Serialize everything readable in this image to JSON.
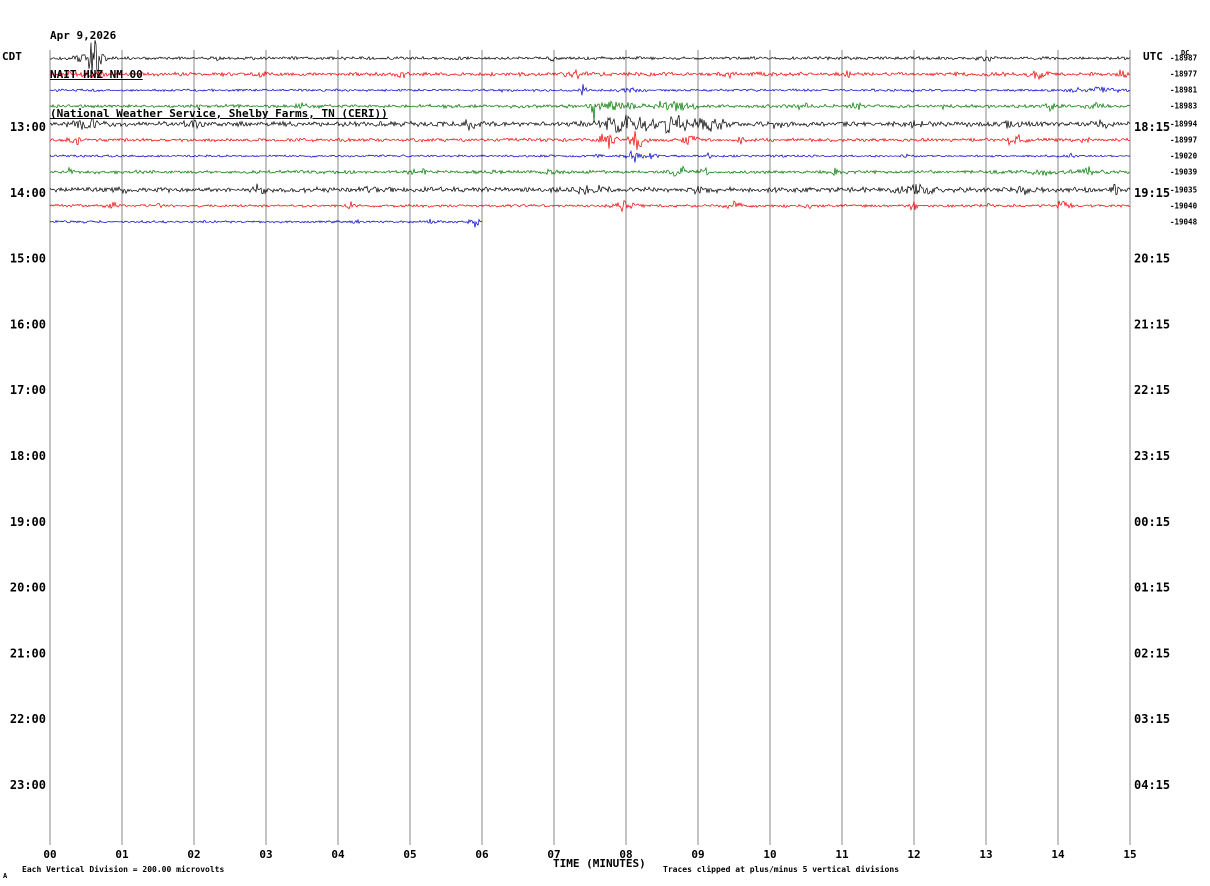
{
  "header": {
    "date": "Apr 9,2026",
    "station": "NAIT HNZ NM 00",
    "description": "(National Weather Service, Shelby Farms, TN (CERI))"
  },
  "axes": {
    "left_label": "CDT",
    "right_label": "UTC",
    "x_axis_label": "TIME (MINUTES)"
  },
  "footer": {
    "scale_note": "Each Vertical Division =  200.00 microvolts",
    "clip_note": "Traces clipped at plus/minus 5 vertical divisions",
    "corner_mark": "A"
  },
  "chart_data": {
    "type": "line",
    "title": "NAIT HNZ NM 00 helicorder",
    "xlabel": "TIME (MINUTES)",
    "x_range": [
      0,
      15
    ],
    "x_ticks": [
      "00",
      "01",
      "02",
      "03",
      "04",
      "05",
      "06",
      "07",
      "08",
      "09",
      "10",
      "11",
      "12",
      "13",
      "14",
      "15"
    ],
    "left_axis": "CDT",
    "right_axis": "UTC",
    "left_hour_labels": [
      "13:00",
      "14:00",
      "15:00",
      "16:00",
      "17:00",
      "18:00",
      "19:00",
      "20:00",
      "21:00",
      "22:00",
      "23:00"
    ],
    "right_hour_labels": [
      "18:15",
      "19:15",
      "20:15",
      "21:15",
      "22:15",
      "23:15",
      "00:15",
      "01:15",
      "02:15",
      "03:15",
      "04:15"
    ],
    "dc_header": "DC",
    "grid_color": "#888888",
    "clip_divisions": 5,
    "colors": {
      "black": "#000000",
      "red": "#ee0000",
      "blue": "#0000cc",
      "green": "#007700"
    },
    "traces": [
      {
        "color": "black",
        "hour_row": 0,
        "quarter": 0,
        "dc_offset": "-18987",
        "base_amp": 1.8,
        "seed": 101,
        "end_minute": 15,
        "events": [
          {
            "t": 0.38,
            "a": 7,
            "w": 0.05
          },
          {
            "t": 0.62,
            "a": 30,
            "w": 0.1
          },
          {
            "t": 2.3,
            "a": 2,
            "w": 0.08
          },
          {
            "t": 7.0,
            "a": 3,
            "w": 0.05
          },
          {
            "t": 10.3,
            "a": 4,
            "w": 0.04
          },
          {
            "t": 13.0,
            "a": 2.5,
            "w": 0.1
          }
        ]
      },
      {
        "color": "red",
        "hour_row": 0,
        "quarter": 1,
        "dc_offset": "-18977",
        "base_amp": 2.2,
        "seed": 102,
        "end_minute": 15,
        "events": [
          {
            "t": 0.5,
            "a": 3,
            "w": 0.2
          },
          {
            "t": 3.0,
            "a": 3,
            "w": 0.1
          },
          {
            "t": 4.9,
            "a": 3,
            "w": 0.08
          },
          {
            "t": 7.3,
            "a": 3.5,
            "w": 0.15
          },
          {
            "t": 9.4,
            "a": 3,
            "w": 0.08
          },
          {
            "t": 11.1,
            "a": 3,
            "w": 0.06
          },
          {
            "t": 13.7,
            "a": 5,
            "w": 0.12
          },
          {
            "t": 14.9,
            "a": 4,
            "w": 0.06
          }
        ]
      },
      {
        "color": "blue",
        "hour_row": 0,
        "quarter": 2,
        "dc_offset": "-18981",
        "base_amp": 1.4,
        "seed": 103,
        "end_minute": 15,
        "events": [
          {
            "t": 6.3,
            "a": 2,
            "w": 0.04
          },
          {
            "t": 7.42,
            "a": 6,
            "w": 0.05
          },
          {
            "t": 8.1,
            "a": 2.5,
            "w": 0.15
          },
          {
            "t": 12.0,
            "a": 2,
            "w": 0.05
          },
          {
            "t": 14.5,
            "a": 4,
            "w": 0.25
          }
        ]
      },
      {
        "color": "green",
        "hour_row": 0,
        "quarter": 3,
        "dc_offset": "-18983",
        "base_amp": 2.0,
        "seed": 104,
        "end_minute": 15,
        "events": [
          {
            "t": 3.45,
            "a": 4,
            "w": 0.12
          },
          {
            "t": 7.55,
            "a": 80,
            "w": 0.015,
            "spike": true
          },
          {
            "t": 7.85,
            "a": 6,
            "w": 0.25
          },
          {
            "t": 8.6,
            "a": 5,
            "w": 0.3
          },
          {
            "t": 10.45,
            "a": 4,
            "w": 0.08
          },
          {
            "t": 11.2,
            "a": 3.5,
            "w": 0.06
          },
          {
            "t": 12.4,
            "a": 3,
            "w": 0.05
          },
          {
            "t": 13.9,
            "a": 4,
            "w": 0.1
          },
          {
            "t": 14.5,
            "a": 3,
            "w": 0.1
          }
        ]
      },
      {
        "color": "black",
        "hour_row": 1,
        "quarter": 0,
        "dc_offset": "-18994",
        "base_amp": 2.8,
        "seed": 105,
        "end_minute": 15,
        "events": [
          {
            "t": 0.5,
            "a": 4,
            "w": 0.3
          },
          {
            "t": 2.0,
            "a": 3,
            "w": 0.1
          },
          {
            "t": 5.9,
            "a": 5,
            "w": 0.2
          },
          {
            "t": 7.9,
            "a": 8,
            "w": 0.3
          },
          {
            "t": 8.6,
            "a": 9,
            "w": 0.35
          },
          {
            "t": 9.2,
            "a": 6,
            "w": 0.2
          },
          {
            "t": 10.1,
            "a": 4,
            "w": 0.1
          },
          {
            "t": 12.0,
            "a": 4,
            "w": 0.15
          },
          {
            "t": 13.3,
            "a": 3.5,
            "w": 0.1
          },
          {
            "t": 14.6,
            "a": 3,
            "w": 0.1
          }
        ]
      },
      {
        "color": "red",
        "hour_row": 1,
        "quarter": 1,
        "dc_offset": "-18997",
        "base_amp": 2.0,
        "seed": 106,
        "end_minute": 15,
        "events": [
          {
            "t": 0.4,
            "a": 3,
            "w": 0.1
          },
          {
            "t": 7.75,
            "a": 12,
            "w": 0.12
          },
          {
            "t": 8.15,
            "a": 10,
            "w": 0.1
          },
          {
            "t": 8.9,
            "a": 5,
            "w": 0.08
          },
          {
            "t": 9.6,
            "a": 3,
            "w": 0.06
          },
          {
            "t": 12.1,
            "a": 3,
            "w": 0.05
          },
          {
            "t": 13.4,
            "a": 8,
            "w": 0.1
          },
          {
            "t": 14.4,
            "a": 3,
            "w": 0.08
          }
        ]
      },
      {
        "color": "blue",
        "hour_row": 1,
        "quarter": 2,
        "dc_offset": "-19020",
        "base_amp": 1.3,
        "seed": 107,
        "end_minute": 15,
        "events": [
          {
            "t": 7.62,
            "a": 3,
            "w": 0.04
          },
          {
            "t": 8.1,
            "a": 6,
            "w": 0.1
          },
          {
            "t": 8.35,
            "a": 4,
            "w": 0.06
          },
          {
            "t": 9.15,
            "a": 4,
            "w": 0.03
          },
          {
            "t": 11.9,
            "a": 2,
            "w": 0.04
          },
          {
            "t": 14.2,
            "a": 2,
            "w": 0.05
          }
        ]
      },
      {
        "color": "green",
        "hour_row": 1,
        "quarter": 3,
        "dc_offset": "-19039",
        "base_amp": 2.0,
        "seed": 108,
        "end_minute": 15,
        "events": [
          {
            "t": 0.3,
            "a": 3,
            "w": 0.08
          },
          {
            "t": 5.1,
            "a": 3.5,
            "w": 0.12
          },
          {
            "t": 7.0,
            "a": 2.5,
            "w": 0.1
          },
          {
            "t": 8.75,
            "a": 8,
            "w": 0.08
          },
          {
            "t": 9.1,
            "a": 3,
            "w": 0.06
          },
          {
            "t": 10.9,
            "a": 3,
            "w": 0.05
          },
          {
            "t": 13.8,
            "a": 4,
            "w": 0.15
          },
          {
            "t": 14.4,
            "a": 4,
            "w": 0.2
          }
        ]
      },
      {
        "color": "black",
        "hour_row": 2,
        "quarter": 0,
        "dc_offset": "-19035",
        "base_amp": 3.0,
        "seed": 109,
        "end_minute": 15,
        "events": [
          {
            "t": 1.0,
            "a": 4,
            "w": 0.1
          },
          {
            "t": 2.9,
            "a": 6,
            "w": 0.08
          },
          {
            "t": 4.5,
            "a": 3,
            "w": 0.1
          },
          {
            "t": 7.5,
            "a": 4,
            "w": 0.2
          },
          {
            "t": 9.0,
            "a": 3.5,
            "w": 0.1
          },
          {
            "t": 12.0,
            "a": 5,
            "w": 0.25
          },
          {
            "t": 13.5,
            "a": 3.5,
            "w": 0.1
          },
          {
            "t": 14.8,
            "a": 4,
            "w": 0.06
          }
        ]
      },
      {
        "color": "red",
        "hour_row": 2,
        "quarter": 1,
        "dc_offset": "-19040",
        "base_amp": 1.6,
        "seed": 110,
        "end_minute": 15,
        "events": [
          {
            "t": 0.9,
            "a": 4,
            "w": 0.06
          },
          {
            "t": 1.5,
            "a": 2.5,
            "w": 0.05
          },
          {
            "t": 4.2,
            "a": 5,
            "w": 0.06
          },
          {
            "t": 7.95,
            "a": 5,
            "w": 0.15
          },
          {
            "t": 9.5,
            "a": 4,
            "w": 0.1
          },
          {
            "t": 10.5,
            "a": 3,
            "w": 0.08
          },
          {
            "t": 12.0,
            "a": 11,
            "w": 0.04
          },
          {
            "t": 13.0,
            "a": 2.5,
            "w": 0.06
          },
          {
            "t": 14.05,
            "a": 5,
            "w": 0.1
          }
        ]
      },
      {
        "color": "blue",
        "hour_row": 2,
        "quarter": 2,
        "dc_offset": "-19048",
        "base_amp": 1.4,
        "seed": 111,
        "end_minute": 6.0,
        "events": [
          {
            "t": 4.2,
            "a": 3,
            "w": 0.06
          },
          {
            "t": 5.3,
            "a": 2.5,
            "w": 0.08
          },
          {
            "t": 5.9,
            "a": 5,
            "w": 0.08
          }
        ]
      }
    ]
  }
}
